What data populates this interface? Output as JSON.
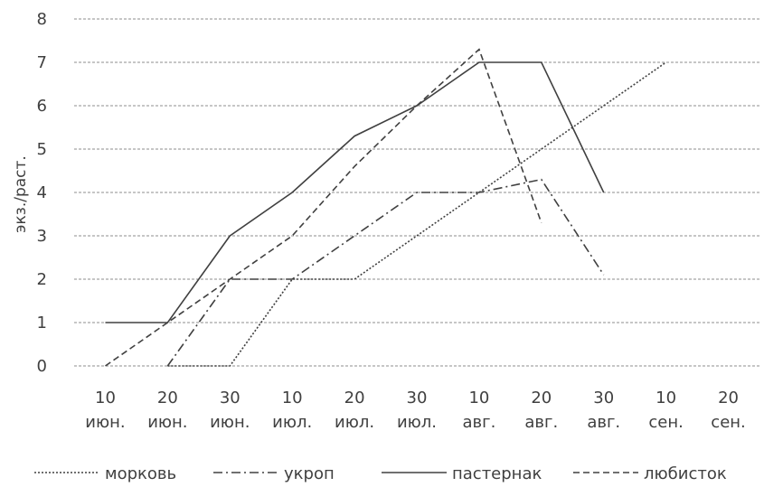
{
  "chart_data": {
    "type": "line",
    "title": "",
    "xlabel": "",
    "ylabel": "экз./раст.",
    "ylim": [
      0,
      8
    ],
    "yticks": [
      "0",
      "1",
      "2",
      "3",
      "4",
      "5",
      "6",
      "7",
      "8"
    ],
    "grid": true,
    "legend_position": "bottom",
    "categories": [
      [
        "10",
        "июн."
      ],
      [
        "20",
        "июн."
      ],
      [
        "30",
        "июн."
      ],
      [
        "10",
        "июл."
      ],
      [
        "20",
        "июл."
      ],
      [
        "30",
        "июл."
      ],
      [
        "10",
        "авг."
      ],
      [
        "20",
        "авг."
      ],
      [
        "30",
        "авг."
      ],
      [
        "10",
        "сен."
      ],
      [
        "20",
        "сен."
      ]
    ],
    "series": [
      {
        "name": "морковь",
        "style": "dotted",
        "color": "#404040",
        "values": [
          null,
          0,
          0,
          2,
          2,
          3,
          4,
          5,
          6,
          7,
          null
        ]
      },
      {
        "name": "укроп",
        "style": "dashdot",
        "color": "#404040",
        "values": [
          null,
          0,
          2,
          2,
          3,
          4,
          4,
          4.3,
          2.1,
          null,
          null
        ]
      },
      {
        "name": "пастернак",
        "style": "solid",
        "color": "#404040",
        "values": [
          1,
          1,
          3,
          4,
          5.3,
          6,
          7,
          7,
          4,
          null,
          null
        ]
      },
      {
        "name": "любисток",
        "style": "dashed",
        "color": "#404040",
        "values": [
          0,
          1,
          2,
          3,
          4.6,
          6,
          7.3,
          3.3,
          null,
          null,
          null
        ]
      }
    ]
  }
}
